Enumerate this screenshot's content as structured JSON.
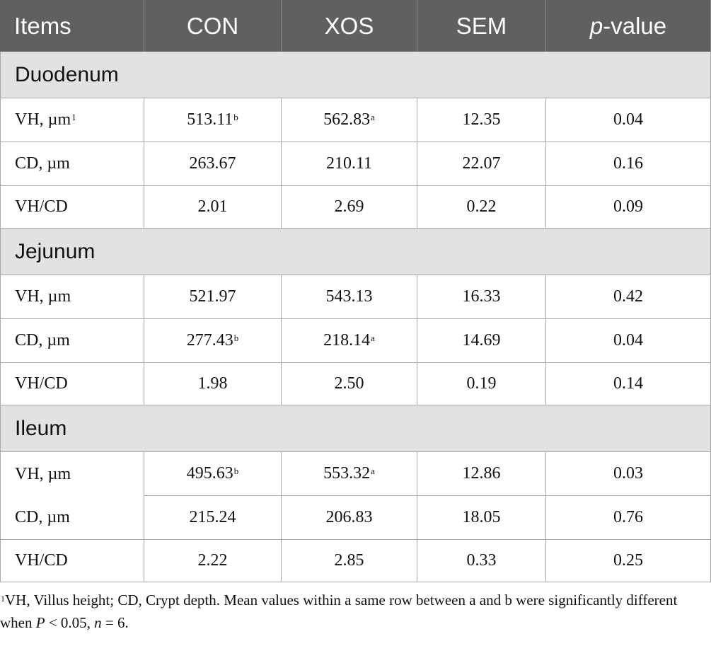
{
  "table": {
    "header": [
      "Items",
      "CON",
      "XOS",
      "SEM",
      {
        "italic": "p",
        "text": "-value"
      }
    ],
    "sections": [
      {
        "title": "Duodenum",
        "rows": [
          [
            {
              "text": "VH, µm",
              "sup": "1"
            },
            {
              "text": "513.11",
              "sup": "b"
            },
            {
              "text": "562.83",
              "sup": "a"
            },
            "12.35",
            "0.04"
          ],
          [
            "CD, µm",
            "263.67",
            "210.11",
            "22.07",
            "0.16"
          ],
          [
            "VH/CD",
            "2.01",
            "2.69",
            "0.22",
            "0.09"
          ]
        ]
      },
      {
        "title": "Jejunum",
        "rows": [
          [
            "VH, µm",
            "521.97",
            "543.13",
            "16.33",
            "0.42"
          ],
          [
            "CD, µm",
            {
              "text": "277.43",
              "sup": "b"
            },
            {
              "text": "218.14",
              "sup": "a"
            },
            "14.69",
            "0.04"
          ],
          [
            "VH/CD",
            "1.98",
            "2.50",
            "0.19",
            "0.14"
          ]
        ]
      },
      {
        "title": "Ileum",
        "rows": [
          [
            "VH, µm",
            {
              "text": "495.63",
              "sup": "b"
            },
            {
              "text": "553.32",
              "sup": "a"
            },
            "12.86",
            "0.03"
          ],
          [
            "CD, µm",
            "215.24",
            "206.83",
            "18.05",
            "0.76"
          ],
          [
            "VH/CD",
            "2.22",
            "2.85",
            "0.33",
            "0.25"
          ]
        ]
      }
    ]
  },
  "footnote": {
    "sup": "1",
    "text1": "VH, Villus height; CD, Crypt depth. Mean values within a same row between a and b were significantly different when ",
    "italic1": "P",
    "text2": " < 0.05, ",
    "italic2": "n",
    "text3": " = 6."
  }
}
